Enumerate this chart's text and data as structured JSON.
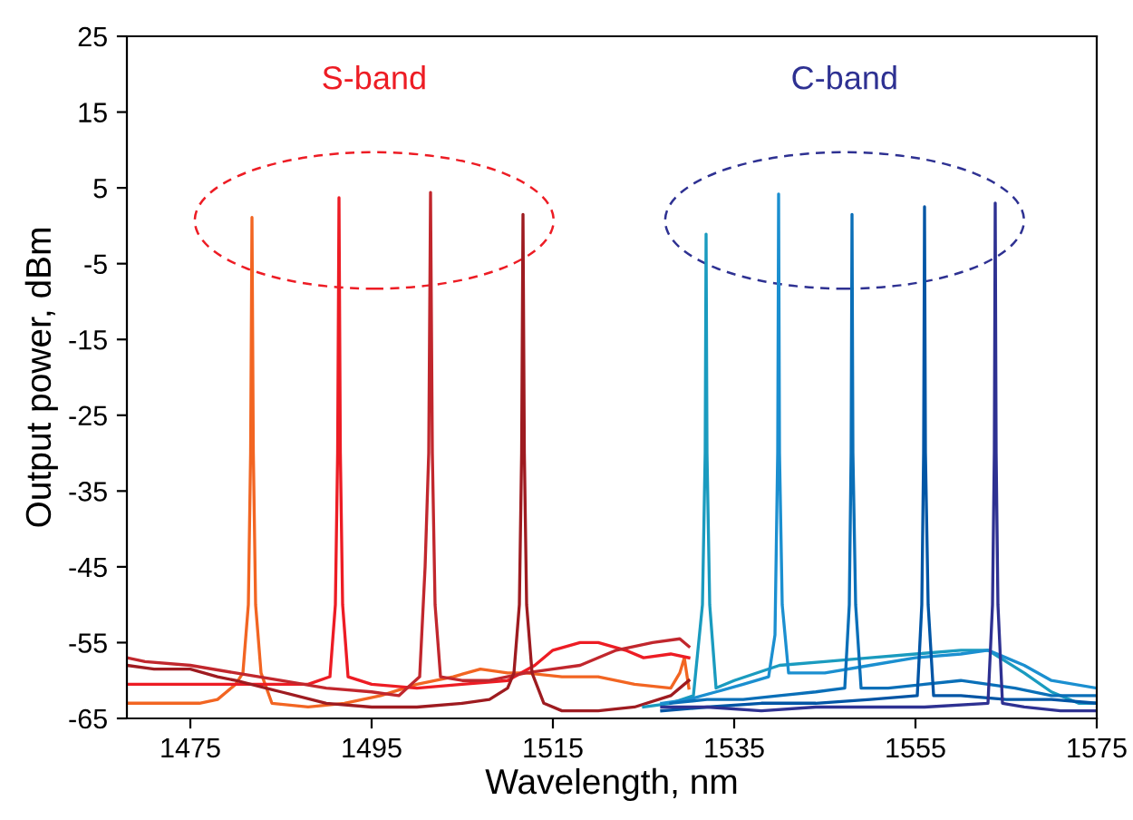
{
  "chart_data": {
    "type": "line",
    "xlabel": "Wavelength, nm",
    "ylabel": "Output power, dBm",
    "xlim": [
      1468,
      1575
    ],
    "xticks": [
      1475,
      1495,
      1515,
      1535,
      1555,
      1575
    ],
    "ylim": [
      -65,
      25
    ],
    "yticks": [
      -65,
      -55,
      -45,
      -35,
      -25,
      -15,
      -5,
      5,
      15,
      25
    ],
    "grid": false,
    "legend": false,
    "marker": "none",
    "line_style": "solid",
    "annotations": [
      "S-band",
      "C-band"
    ],
    "series": [
      {
        "color": "#f26522",
        "x": [
          1468,
          1472,
          1476,
          1478,
          1480,
          1480.8,
          1481.4,
          1481.65,
          1481.8,
          1481.95,
          1482.2,
          1482.8,
          1484,
          1488,
          1492,
          1496,
          1500,
          1504,
          1507,
          1510,
          1512,
          1516,
          1520,
          1524,
          1528,
          1529,
          1529.5,
          1530
        ],
        "values": [
          -63,
          -63,
          -63,
          -62.5,
          -60.5,
          -59,
          -50,
          -30,
          1.1,
          -30,
          -50,
          -59,
          -63,
          -63.5,
          -63,
          -62,
          -60.5,
          -59.5,
          -58.5,
          -59,
          -59,
          -59.5,
          -59.5,
          -60.5,
          -61,
          -59,
          -57,
          -61
        ]
      },
      {
        "color": "#ed1c24",
        "x": [
          1468,
          1472,
          1476,
          1480,
          1484,
          1488,
          1490.4,
          1491,
          1491.25,
          1491.4,
          1491.55,
          1491.8,
          1492.4,
          1495,
          1500,
          1505,
          1510,
          1513,
          1515,
          1518,
          1520,
          1523,
          1525,
          1528,
          1530
        ],
        "values": [
          -60.5,
          -60.5,
          -60.5,
          -60.5,
          -60.5,
          -60.5,
          -59.5,
          -50,
          -30,
          3.7,
          -30,
          -50,
          -59.5,
          -60.5,
          -61,
          -60.5,
          -60,
          -58,
          -56,
          -55,
          -55,
          -56,
          -57,
          -56.5,
          -57
        ]
      },
      {
        "color": "#c1272d",
        "x": [
          1468,
          1470,
          1475,
          1480,
          1485,
          1490,
          1495,
          1498,
          1500.3,
          1500.9,
          1501.3,
          1501.5,
          1501.7,
          1502,
          1502.6,
          1505,
          1508,
          1512,
          1515,
          1518,
          1522,
          1526,
          1529,
          1530
        ],
        "values": [
          -57,
          -57.5,
          -58,
          -59,
          -60,
          -61,
          -61.5,
          -62,
          -59.5,
          -45,
          -30,
          4.4,
          -30,
          -50,
          -59.5,
          -60,
          -60,
          -59,
          -58.5,
          -58,
          -56,
          -55,
          -54.5,
          -55.5
        ]
      },
      {
        "color": "#9e1b20",
        "x": [
          1468,
          1471,
          1475,
          1478,
          1480,
          1485,
          1490,
          1495,
          1500,
          1505,
          1508,
          1510,
          1510.7,
          1511.3,
          1511.55,
          1511.7,
          1511.85,
          1512.1,
          1512.7,
          1514,
          1516,
          1520,
          1524,
          1528,
          1530
        ],
        "values": [
          -58,
          -58.5,
          -58.5,
          -59.5,
          -60,
          -61.5,
          -63,
          -63.5,
          -63.5,
          -63,
          -62.5,
          -61,
          -59,
          -50,
          -30,
          1.5,
          -30,
          -50,
          -59,
          -63,
          -64,
          -64,
          -63.5,
          -62,
          -60
        ]
      },
      {
        "color": "#1a9bbf",
        "x": [
          1525,
          1528,
          1530.5,
          1531.5,
          1531.8,
          1531.9,
          1532,
          1532.3,
          1533,
          1535,
          1540,
          1545,
          1550,
          1555,
          1560,
          1563,
          1565,
          1567,
          1570,
          1573,
          1575
        ],
        "values": [
          -63.5,
          -63,
          -62,
          -50,
          -30,
          -1.1,
          -30,
          -50,
          -61,
          -60,
          -58,
          -57.5,
          -57,
          -56.5,
          -56,
          -56,
          -57.5,
          -59,
          -61.5,
          -63,
          -63
        ]
      },
      {
        "color": "#1b8fd0",
        "x": [
          1527,
          1530,
          1533,
          1536,
          1538.8,
          1539.5,
          1539.8,
          1539.9,
          1540,
          1540.3,
          1541,
          1545,
          1550,
          1555,
          1560,
          1563,
          1565,
          1567,
          1570,
          1575
        ],
        "values": [
          -63,
          -62.5,
          -61.5,
          -60.5,
          -59.5,
          -54,
          -30,
          4.2,
          -30,
          -50,
          -59,
          -59,
          -58,
          -57,
          -56.5,
          -56,
          -57,
          -58,
          -60,
          -61
        ]
      },
      {
        "color": "#0a6fb8",
        "x": [
          1528,
          1532,
          1536,
          1540,
          1544,
          1547.2,
          1547.7,
          1547.9,
          1548,
          1548.1,
          1548.4,
          1549,
          1552,
          1556,
          1560,
          1563,
          1566,
          1570,
          1575
        ],
        "values": [
          -63,
          -62.5,
          -62.5,
          -62,
          -61.5,
          -61,
          -50,
          -30,
          1.5,
          -30,
          -50,
          -61,
          -61,
          -60.5,
          -60,
          -60.5,
          -61,
          -62,
          -62
        ]
      },
      {
        "color": "#0055a5",
        "x": [
          1527,
          1532,
          1538,
          1544,
          1550,
          1555.2,
          1555.7,
          1555.9,
          1556,
          1556.1,
          1556.4,
          1557,
          1560,
          1565,
          1570,
          1575
        ],
        "values": [
          -64,
          -63.5,
          -63,
          -63,
          -62.5,
          -62,
          -50,
          -30,
          2.5,
          -30,
          -50,
          -62,
          -62,
          -62.5,
          -62.5,
          -63
        ]
      },
      {
        "color": "#2e3192",
        "x": [
          1527,
          1532,
          1538,
          1544,
          1550,
          1556,
          1563,
          1563.5,
          1563.7,
          1563.8,
          1563.9,
          1564.1,
          1564.6,
          1567,
          1571,
          1575
        ],
        "values": [
          -63.5,
          -63.5,
          -64,
          -63.5,
          -63.5,
          -63.5,
          -63,
          -50,
          -30,
          3.0,
          -30,
          -50,
          -63,
          -63.5,
          -64,
          -64
        ]
      }
    ]
  }
}
